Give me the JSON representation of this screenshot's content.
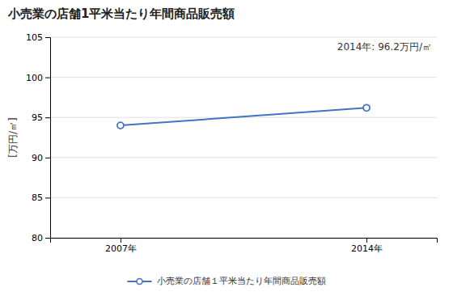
{
  "chart_data": {
    "type": "line",
    "title": "小売業の店舗1平米当たり年間商品販売額",
    "ylabel": "[万円/㎡]",
    "annotation": "2014年: 96.2万円/㎡",
    "x": [
      2007,
      2014
    ],
    "series": [
      {
        "name": "小売業の店舗１平米当たり年間商品販売額",
        "color": "#4472C4",
        "marker": "circle",
        "values": [
          94.0,
          96.2
        ]
      }
    ],
    "xlim": [
      2005.0,
      2016.0
    ],
    "xticks": [
      {
        "value": 2007,
        "label": "2007年"
      },
      {
        "value": 2014,
        "label": "2014年"
      }
    ],
    "ylim": [
      80,
      105
    ],
    "yticks": [
      80,
      85,
      90,
      95,
      100,
      105
    ],
    "grid": true,
    "legend": "bottom"
  }
}
